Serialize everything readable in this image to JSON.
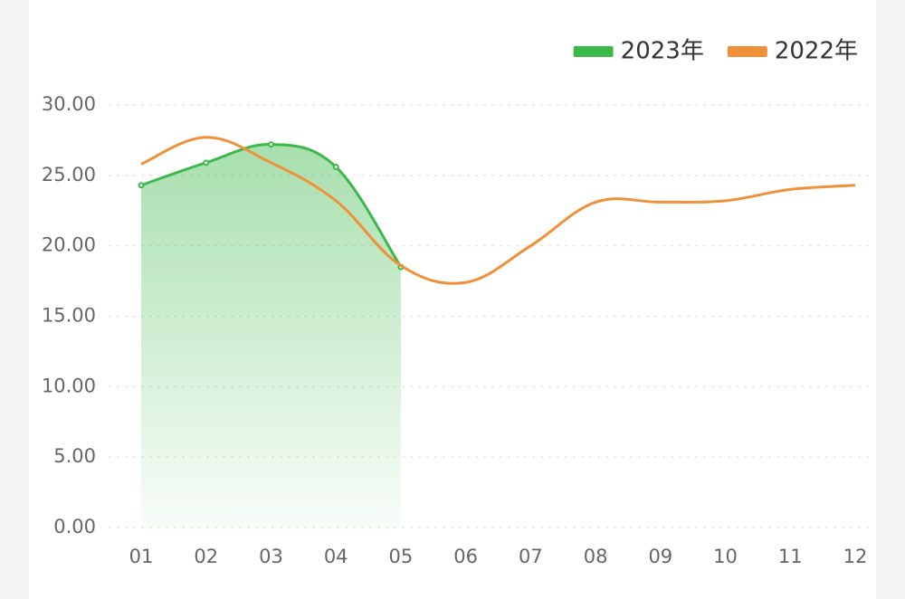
{
  "chart_data": {
    "type": "line",
    "categories": [
      "01",
      "02",
      "03",
      "04",
      "05",
      "06",
      "07",
      "08",
      "09",
      "10",
      "11",
      "12"
    ],
    "series": [
      {
        "name": "2023年",
        "color": "#3db94b",
        "values": [
          24.3,
          25.9,
          27.2,
          25.6,
          18.5,
          null,
          null,
          null,
          null,
          null,
          null,
          null
        ],
        "area": true
      },
      {
        "name": "2022年",
        "color": "#f0913a",
        "values": [
          25.8,
          27.7,
          25.9,
          23.2,
          18.6,
          17.4,
          20.0,
          23.1,
          23.1,
          23.2,
          24.0,
          24.3
        ]
      }
    ],
    "ylim": [
      0,
      30
    ],
    "yticks": [
      {
        "value": 0,
        "label": "0.00"
      },
      {
        "value": 5,
        "label": "5.00"
      },
      {
        "value": 10,
        "label": "10.00"
      },
      {
        "value": 15,
        "label": "15.00"
      },
      {
        "value": 20,
        "label": "20.00"
      },
      {
        "value": 25,
        "label": "25.00"
      },
      {
        "value": 30,
        "label": "30.00"
      }
    ],
    "grid": true,
    "legend": "top-right"
  }
}
